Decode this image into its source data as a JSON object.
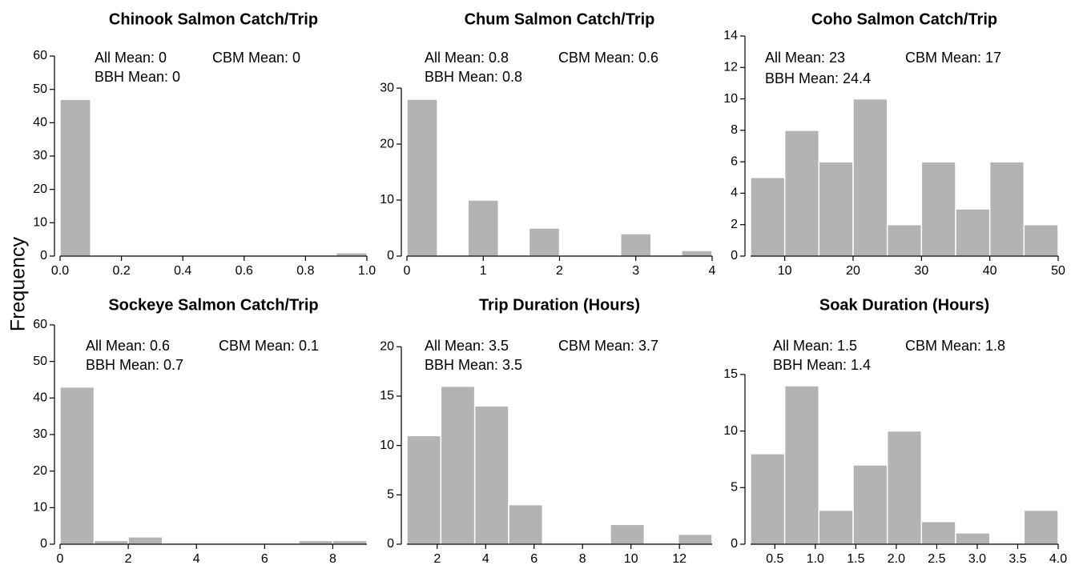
{
  "ylabel": "Frequency",
  "chart_data": [
    {
      "type": "histogram",
      "title": "Chinook Salmon Catch/Trip",
      "annotations": [
        "All Mean: 0",
        "CBM Mean: 0",
        "BBH Mean: 0"
      ],
      "bins": [
        0,
        0.1,
        0.2,
        0.3,
        0.4,
        0.5,
        0.6,
        0.7,
        0.8,
        0.9,
        1.0
      ],
      "counts": [
        47,
        0,
        0,
        0,
        0,
        0,
        0,
        0,
        0,
        1
      ],
      "color": "#b3b3b3",
      "xlim": [
        0,
        1
      ],
      "xticks": [
        {
          "value": 0,
          "label": "0.0"
        },
        0.2,
        0.4,
        0.6,
        0.8,
        {
          "value": 1,
          "label": "1.0"
        }
      ],
      "ylim": [
        0,
        66
      ],
      "yticks": [
        0,
        10,
        20,
        30,
        40,
        50,
        60
      ]
    },
    {
      "type": "histogram",
      "title": "Chum Salmon Catch/Trip",
      "annotations": [
        "All Mean: 0.8",
        "CBM Mean: 0.6",
        "BBH Mean: 0.8"
      ],
      "bins": [
        0,
        0.4,
        0.8,
        1.2,
        1.6,
        2.0,
        2.4,
        2.8,
        3.2,
        3.6,
        4.0
      ],
      "counts": [
        28,
        0,
        10,
        0,
        5,
        0,
        0,
        4,
        0,
        1
      ],
      "color": "#b3b3b3",
      "xlim": [
        0,
        4
      ],
      "xticks": [
        0,
        1,
        2,
        3,
        4
      ],
      "ylim": [
        0,
        39.3
      ],
      "yticks": [
        0,
        10,
        20,
        30
      ]
    },
    {
      "type": "histogram",
      "title": "Coho Salmon Catch/Trip",
      "annotations": [
        "All Mean: 23",
        "CBM Mean: 17",
        "BBH Mean: 24.4"
      ],
      "bins": [
        5,
        10,
        15,
        20,
        25,
        30,
        35,
        40,
        45,
        50
      ],
      "counts": [
        5,
        8,
        6,
        10,
        2,
        6,
        3,
        6,
        2
      ],
      "color": "#b3b3b3",
      "xlim": [
        5,
        50
      ],
      "xticks": [
        10,
        20,
        30,
        40,
        50
      ],
      "ylim": [
        0,
        14
      ],
      "yticks": [
        0,
        2,
        4,
        6,
        8,
        10,
        12,
        14
      ]
    },
    {
      "type": "histogram",
      "title": "Sockeye Salmon Catch/Trip",
      "annotations": [
        "All Mean: 0.6",
        "CBM Mean: 0.1",
        "BBH Mean: 0.7"
      ],
      "bins": [
        0,
        1,
        2,
        3,
        4,
        5,
        6,
        7,
        8,
        9
      ],
      "counts": [
        43,
        1,
        2,
        0,
        0,
        0,
        0,
        1,
        1
      ],
      "color": "#b3b3b3",
      "xlim": [
        0,
        9
      ],
      "xticks": [
        0,
        2,
        4,
        6,
        8
      ],
      "ylim": [
        0,
        61.3
      ],
      "yticks": [
        0,
        10,
        20,
        30,
        40,
        50,
        60
      ]
    },
    {
      "type": "histogram",
      "title": "Trip Duration (Hours)",
      "annotations": [
        "All Mean: 3.5",
        "CBM Mean: 3.7",
        "BBH Mean: 3.5"
      ],
      "bins": [
        0.75,
        2.15,
        3.55,
        4.95,
        6.35,
        7.75,
        9.15,
        10.55,
        11.95,
        13.35
      ],
      "counts": [
        11,
        16,
        14,
        4,
        0,
        0,
        2,
        0,
        1
      ],
      "color": "#b3b3b3",
      "xlim": [
        0.75,
        13.35
      ],
      "xticks": [
        2,
        4,
        6,
        8,
        10,
        12
      ],
      "ylim": [
        0,
        22.7
      ],
      "yticks": [
        0,
        5,
        10,
        15,
        20
      ]
    },
    {
      "type": "histogram",
      "title": "Soak Duration (Hours)",
      "annotations": [
        "All Mean: 1.5",
        "CBM Mean: 1.8",
        "BBH Mean: 1.4"
      ],
      "bins": [
        0.2,
        0.622,
        1.044,
        1.467,
        1.889,
        2.311,
        2.733,
        3.156,
        3.578,
        4.0
      ],
      "counts": [
        8,
        14,
        3,
        7,
        10,
        2,
        1,
        0,
        3
      ],
      "color": "#b3b3b3",
      "xlim": [
        0.2,
        4.0
      ],
      "xticks": [
        0.5,
        {
          "value": 1,
          "label": "1.0"
        },
        1.5,
        {
          "value": 2,
          "label": "2.0"
        },
        2.5,
        {
          "value": 3,
          "label": "3.0"
        },
        3.5,
        {
          "value": 4,
          "label": "4.0"
        }
      ],
      "ylim": [
        0,
        19.8
      ],
      "yticks": [
        0,
        5,
        10,
        15
      ]
    }
  ]
}
